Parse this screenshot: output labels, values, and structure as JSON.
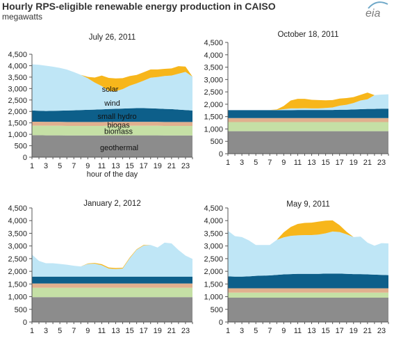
{
  "title": "Hourly RPS-eligible renewable energy production in CAISO",
  "unit": "megawatts",
  "logo_text": "eia",
  "colors": {
    "geothermal": "#8c8c8c",
    "biomass": "#c5e0a5",
    "biogas": "#e0b08e",
    "small_hydro": "#0d5f8a",
    "wind": "#bfe6f6",
    "solar": "#f7b61b"
  },
  "chart_data": [
    {
      "type": "area",
      "stacked": true,
      "title": "July 26, 2011",
      "xlabel": "hour of the day",
      "ylabel": "",
      "x": [
        1,
        2,
        3,
        4,
        5,
        6,
        7,
        8,
        9,
        10,
        11,
        12,
        13,
        14,
        15,
        16,
        17,
        18,
        19,
        20,
        21,
        22,
        23,
        24
      ],
      "xticks": [
        1,
        3,
        5,
        7,
        9,
        11,
        13,
        15,
        17,
        19,
        21,
        23
      ],
      "ylim": [
        0,
        4500
      ],
      "yticks": [
        "0",
        "500",
        "1,000",
        "1,500",
        "2,000",
        "2,500",
        "3,000",
        "3,500",
        "4,000",
        "4,500"
      ],
      "inline_labels": [
        {
          "text": "solar",
          "x": 12.2,
          "y": 2980
        },
        {
          "text": "wind",
          "x": 12.5,
          "y": 2370
        },
        {
          "text": "small hydro",
          "x": 13.2,
          "y": 1790
        },
        {
          "text": "biogas",
          "x": 13.4,
          "y": 1410
        },
        {
          "text": "biomass",
          "x": 13.4,
          "y": 1140
        },
        {
          "text": "geothermal",
          "x": 13.5,
          "y": 420
        }
      ],
      "series": [
        {
          "name": "geothermal",
          "values": [
            960,
            960,
            955,
            955,
            955,
            950,
            950,
            950,
            950,
            950,
            950,
            955,
            955,
            955,
            955,
            955,
            955,
            955,
            955,
            950,
            950,
            950,
            950,
            950
          ]
        },
        {
          "name": "biomass",
          "values": [
            420,
            420,
            420,
            420,
            420,
            420,
            420,
            420,
            420,
            420,
            420,
            420,
            420,
            420,
            420,
            420,
            420,
            420,
            420,
            420,
            420,
            420,
            420,
            420
          ]
        },
        {
          "name": "biogas",
          "values": [
            170,
            170,
            170,
            170,
            170,
            170,
            170,
            170,
            170,
            170,
            170,
            170,
            170,
            170,
            170,
            170,
            170,
            170,
            170,
            170,
            170,
            170,
            170,
            170
          ]
        },
        {
          "name": "small hydro",
          "values": [
            490,
            480,
            475,
            480,
            490,
            500,
            510,
            520,
            530,
            540,
            550,
            560,
            570,
            580,
            590,
            600,
            600,
            590,
            580,
            570,
            560,
            540,
            520,
            500
          ]
        },
        {
          "name": "wind",
          "values": [
            2020,
            2010,
            1980,
            1930,
            1870,
            1790,
            1670,
            1540,
            1380,
            1180,
            1020,
            790,
            770,
            850,
            990,
            1080,
            1200,
            1340,
            1380,
            1440,
            1470,
            1570,
            1670,
            1480
          ]
        },
        {
          "name": "solar",
          "values": [
            0,
            0,
            0,
            0,
            0,
            0,
            0,
            0,
            60,
            220,
            460,
            570,
            560,
            480,
            420,
            370,
            370,
            360,
            330,
            310,
            310,
            330,
            230,
            0
          ]
        }
      ]
    },
    {
      "type": "area",
      "stacked": true,
      "title": "October 18, 2011",
      "xlabel": "",
      "ylabel": "",
      "x": [
        1,
        2,
        3,
        4,
        5,
        6,
        7,
        8,
        9,
        10,
        11,
        12,
        13,
        14,
        15,
        16,
        17,
        18,
        19,
        20,
        21,
        22,
        23,
        24
      ],
      "xticks": [
        1,
        3,
        5,
        7,
        9,
        11,
        13,
        15,
        17,
        19,
        21,
        23
      ],
      "ylim": [
        0,
        4500
      ],
      "yticks": [
        "0",
        "500",
        "1,000",
        "1,500",
        "2,000",
        "2,500",
        "3,000",
        "3,500",
        "4,000",
        "4,500"
      ],
      "series": [
        {
          "name": "geothermal",
          "values": [
            910,
            910,
            910,
            910,
            910,
            910,
            910,
            910,
            910,
            910,
            910,
            910,
            910,
            910,
            910,
            910,
            910,
            910,
            910,
            910,
            910,
            910,
            910,
            910
          ]
        },
        {
          "name": "biomass",
          "values": [
            370,
            370,
            370,
            370,
            370,
            370,
            370,
            370,
            370,
            370,
            370,
            370,
            370,
            370,
            370,
            370,
            370,
            370,
            370,
            370,
            370,
            370,
            370,
            370
          ]
        },
        {
          "name": "biogas",
          "values": [
            160,
            160,
            160,
            160,
            160,
            160,
            160,
            160,
            160,
            160,
            160,
            160,
            160,
            160,
            160,
            160,
            160,
            160,
            160,
            160,
            160,
            160,
            160,
            160
          ]
        },
        {
          "name": "small hydro",
          "values": [
            320,
            320,
            320,
            320,
            320,
            320,
            320,
            320,
            320,
            320,
            330,
            330,
            330,
            330,
            330,
            330,
            340,
            340,
            350,
            360,
            370,
            370,
            380,
            380
          ]
        },
        {
          "name": "wind",
          "values": [
            10,
            10,
            10,
            10,
            10,
            10,
            10,
            10,
            40,
            70,
            60,
            70,
            60,
            60,
            80,
            100,
            160,
            200,
            260,
            350,
            390,
            560,
            570,
            580
          ]
        },
        {
          "name": "solar",
          "values": [
            0,
            0,
            0,
            0,
            0,
            0,
            0,
            20,
            130,
            320,
            390,
            380,
            350,
            340,
            310,
            300,
            290,
            270,
            240,
            230,
            270,
            0,
            0,
            0
          ]
        }
      ]
    },
    {
      "type": "area",
      "stacked": true,
      "title": "January 2, 2012",
      "xlabel": "",
      "ylabel": "",
      "x": [
        1,
        2,
        3,
        4,
        5,
        6,
        7,
        8,
        9,
        10,
        11,
        12,
        13,
        14,
        15,
        16,
        17,
        18,
        19,
        20,
        21,
        22,
        23,
        24
      ],
      "xticks": [
        1,
        3,
        5,
        7,
        9,
        11,
        13,
        15,
        17,
        19,
        21,
        23
      ],
      "ylim": [
        0,
        4500
      ],
      "yticks": [
        "0",
        "500",
        "1,000",
        "1,500",
        "2,000",
        "2,500",
        "3,000",
        "3,500",
        "4,000",
        "4,500"
      ],
      "series": [
        {
          "name": "geothermal",
          "values": [
            980,
            980,
            980,
            980,
            980,
            980,
            980,
            980,
            980,
            980,
            980,
            980,
            980,
            980,
            980,
            980,
            980,
            980,
            980,
            980,
            980,
            980,
            980,
            980
          ]
        },
        {
          "name": "biomass",
          "values": [
            370,
            370,
            370,
            370,
            370,
            370,
            370,
            370,
            370,
            370,
            370,
            370,
            370,
            370,
            370,
            370,
            370,
            370,
            370,
            370,
            370,
            370,
            370,
            370
          ]
        },
        {
          "name": "biogas",
          "values": [
            170,
            170,
            170,
            170,
            170,
            170,
            170,
            170,
            170,
            170,
            170,
            170,
            170,
            170,
            170,
            170,
            170,
            170,
            170,
            170,
            170,
            170,
            170,
            170
          ]
        },
        {
          "name": "small hydro",
          "values": [
            270,
            270,
            270,
            270,
            270,
            270,
            270,
            270,
            270,
            270,
            270,
            270,
            270,
            270,
            270,
            270,
            270,
            270,
            270,
            270,
            270,
            270,
            270,
            270
          ]
        },
        {
          "name": "wind",
          "values": [
            870,
            620,
            530,
            530,
            500,
            470,
            430,
            400,
            500,
            510,
            450,
            320,
            300,
            320,
            720,
            1060,
            1230,
            1250,
            1150,
            1340,
            1310,
            1050,
            830,
            700
          ]
        },
        {
          "name": "solar",
          "values": [
            0,
            0,
            0,
            0,
            0,
            0,
            0,
            0,
            20,
            30,
            40,
            40,
            40,
            30,
            30,
            20,
            20,
            0,
            0,
            0,
            0,
            0,
            0,
            0
          ]
        }
      ]
    },
    {
      "type": "area",
      "stacked": true,
      "title": "May 9, 2011",
      "xlabel": "",
      "ylabel": "",
      "x": [
        1,
        2,
        3,
        4,
        5,
        6,
        7,
        8,
        9,
        10,
        11,
        12,
        13,
        14,
        15,
        16,
        17,
        18,
        19,
        20,
        21,
        22,
        23,
        24
      ],
      "xticks": [
        1,
        3,
        5,
        7,
        9,
        11,
        13,
        15,
        17,
        19,
        21,
        23
      ],
      "ylim": [
        0,
        4500
      ],
      "yticks": [
        "0",
        "500",
        "1,000",
        "1,500",
        "2,000",
        "2,500",
        "3,000",
        "3,500",
        "4,000",
        "4,500"
      ],
      "series": [
        {
          "name": "geothermal",
          "values": [
            960,
            960,
            960,
            960,
            960,
            960,
            960,
            960,
            960,
            960,
            960,
            960,
            960,
            960,
            960,
            960,
            960,
            960,
            960,
            960,
            960,
            960,
            960,
            960
          ]
        },
        {
          "name": "biomass",
          "values": [
            200,
            200,
            200,
            200,
            200,
            200,
            200,
            200,
            200,
            200,
            200,
            200,
            200,
            200,
            200,
            200,
            200,
            200,
            200,
            200,
            200,
            200,
            200,
            200
          ]
        },
        {
          "name": "biogas",
          "values": [
            170,
            170,
            170,
            170,
            170,
            170,
            170,
            170,
            170,
            170,
            170,
            170,
            170,
            170,
            170,
            170,
            170,
            170,
            170,
            170,
            170,
            170,
            170,
            170
          ]
        },
        {
          "name": "small hydro",
          "values": [
            470,
            460,
            460,
            470,
            490,
            500,
            510,
            530,
            550,
            560,
            570,
            570,
            570,
            570,
            580,
            580,
            580,
            570,
            560,
            560,
            550,
            540,
            530,
            520
          ]
        },
        {
          "name": "wind",
          "values": [
            1800,
            1600,
            1560,
            1420,
            1220,
            1210,
            1200,
            1380,
            1460,
            1510,
            1520,
            1530,
            1530,
            1550,
            1590,
            1660,
            1640,
            1560,
            1460,
            1480,
            1250,
            1140,
            1250,
            1250
          ]
        },
        {
          "name": "solar",
          "values": [
            0,
            0,
            0,
            0,
            0,
            0,
            0,
            0,
            200,
            350,
            450,
            480,
            490,
            510,
            500,
            440,
            270,
            100,
            0,
            0,
            0,
            0,
            0,
            0
          ]
        }
      ]
    }
  ]
}
